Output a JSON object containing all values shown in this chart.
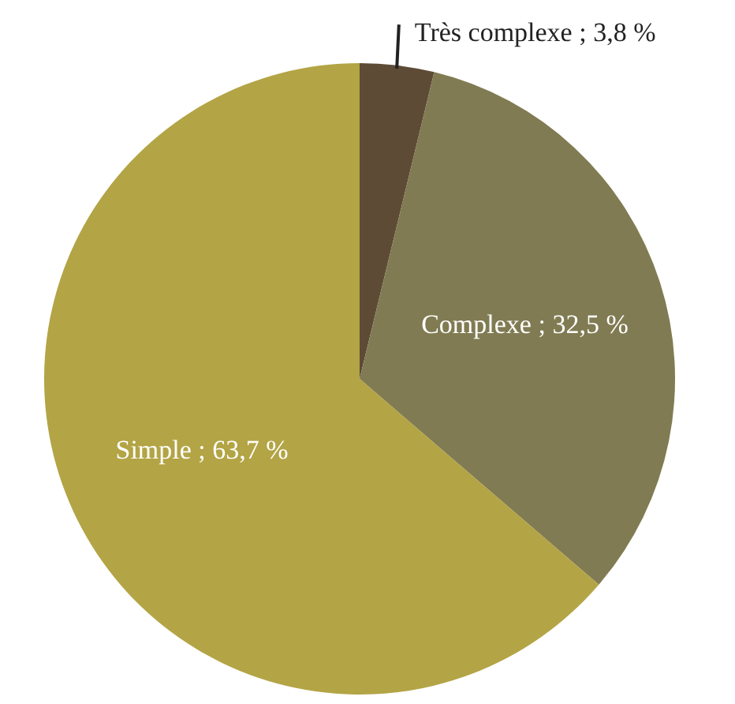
{
  "chart_data": {
    "type": "pie",
    "categories": [
      "Très complexe",
      "Complexe",
      "Simple"
    ],
    "values": [
      3.8,
      32.5,
      63.7
    ],
    "colors": [
      "#5e4b36",
      "#807b52",
      "#b3a445"
    ],
    "value_labels": [
      "3,8 %",
      "32,5 %",
      "63,7 %"
    ]
  }
}
